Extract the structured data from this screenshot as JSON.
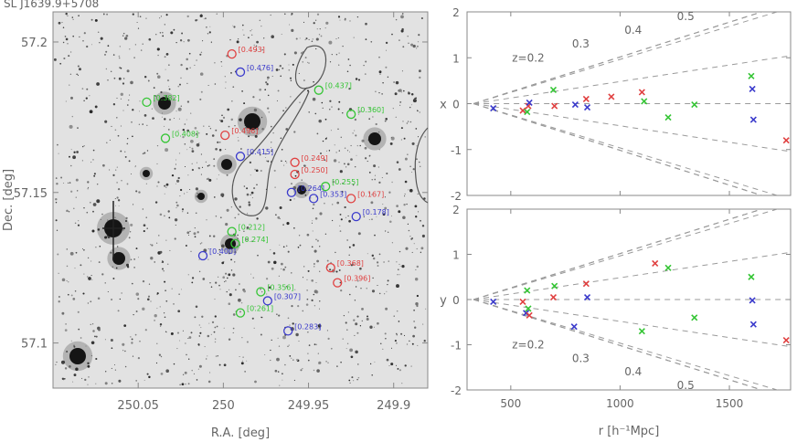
{
  "title": "SL J1639.9+5708",
  "colors": {
    "red": "#e04040",
    "green": "#35c535",
    "blue": "#3a3acc",
    "axis": "#888888",
    "dash": "#9a9a9a"
  },
  "chart_data": [
    {
      "type": "scatter",
      "name": "sky_image",
      "xlabel": "R.A. [deg]",
      "ylabel": "Dec. [deg]",
      "xlim": [
        250.1,
        249.88
      ],
      "ylim": [
        57.085,
        57.21
      ],
      "xticks": [
        {
          "value": 250.05,
          "label": "250.05"
        },
        {
          "value": 250.0,
          "label": "250"
        },
        {
          "value": 249.95,
          "label": "249.95"
        },
        {
          "value": 249.9,
          "label": "249.9"
        }
      ],
      "yticks": [
        {
          "value": 57.2,
          "label": "57.2"
        },
        {
          "value": 57.15,
          "label": "57.15"
        },
        {
          "value": 57.1,
          "label": "57.1"
        }
      ],
      "labels": [
        {
          "text": "[0.493]",
          "color": "red",
          "ra": 249.995,
          "dec": 57.196
        },
        {
          "text": "[0.476]",
          "color": "blue",
          "ra": 249.99,
          "dec": 57.19
        },
        {
          "text": "[0.382]",
          "color": "green",
          "ra": 250.045,
          "dec": 57.18
        },
        {
          "text": "[0.437]",
          "color": "green",
          "ra": 249.944,
          "dec": 57.184
        },
        {
          "text": "[0.360]",
          "color": "green",
          "ra": 249.925,
          "dec": 57.176
        },
        {
          "text": "[0.408]",
          "color": "green",
          "ra": 250.034,
          "dec": 57.168
        },
        {
          "text": "[0.496]",
          "color": "red",
          "ra": 249.999,
          "dec": 57.169
        },
        {
          "text": "[0.415]",
          "color": "blue",
          "ra": 249.99,
          "dec": 57.162
        },
        {
          "text": "[0.249]",
          "color": "red",
          "ra": 249.958,
          "dec": 57.16
        },
        {
          "text": "[0.250]",
          "color": "red",
          "ra": 249.958,
          "dec": 57.156
        },
        {
          "text": "[0.264]",
          "color": "blue",
          "ra": 249.96,
          "dec": 57.15
        },
        {
          "text": "[0.255]",
          "color": "green",
          "ra": 249.94,
          "dec": 57.152
        },
        {
          "text": "[0.353]",
          "color": "blue",
          "ra": 249.947,
          "dec": 57.148
        },
        {
          "text": "[0.167]",
          "color": "red",
          "ra": 249.925,
          "dec": 57.148
        },
        {
          "text": "[0.178]",
          "color": "blue",
          "ra": 249.922,
          "dec": 57.142
        },
        {
          "text": "[0.212]",
          "color": "green",
          "ra": 249.995,
          "dec": 57.137
        },
        {
          "text": "[0.274]",
          "color": "green",
          "ra": 249.993,
          "dec": 57.133
        },
        {
          "text": "[0.400]",
          "color": "blue",
          "ra": 250.012,
          "dec": 57.129
        },
        {
          "text": "[0.368]",
          "color": "red",
          "ra": 249.937,
          "dec": 57.125
        },
        {
          "text": "[0.396]",
          "color": "red",
          "ra": 249.933,
          "dec": 57.12
        },
        {
          "text": "[0.356]",
          "color": "green",
          "ra": 249.978,
          "dec": 57.117
        },
        {
          "text": "[0.307]",
          "color": "blue",
          "ra": 249.974,
          "dec": 57.114
        },
        {
          "text": "[0.261]",
          "color": "green",
          "ra": 249.99,
          "dec": 57.11
        },
        {
          "text": "[0.283]",
          "color": "blue",
          "ra": 249.962,
          "dec": 57.104
        }
      ]
    },
    {
      "type": "scatter",
      "name": "top_wedge",
      "xlabel": "",
      "ylabel": "x",
      "xlim": [
        300,
        1780
      ],
      "ylim": [
        -2,
        2
      ],
      "yticks": [
        -2,
        -1,
        0,
        1,
        2
      ],
      "redshift_labels": [
        "z=0.2",
        "0.3",
        "0.4",
        "0.5"
      ],
      "points": [
        {
          "x": 420,
          "y": -0.1,
          "color": "blue"
        },
        {
          "x": 555,
          "y": -0.15,
          "color": "red"
        },
        {
          "x": 575,
          "y": -0.18,
          "color": "green"
        },
        {
          "x": 580,
          "y": -0.05,
          "color": "red"
        },
        {
          "x": 585,
          "y": 0.02,
          "color": "blue"
        },
        {
          "x": 695,
          "y": 0.3,
          "color": "green"
        },
        {
          "x": 700,
          "y": -0.05,
          "color": "red"
        },
        {
          "x": 795,
          "y": -0.02,
          "color": "blue"
        },
        {
          "x": 845,
          "y": 0.1,
          "color": "red"
        },
        {
          "x": 850,
          "y": -0.08,
          "color": "blue"
        },
        {
          "x": 960,
          "y": 0.15,
          "color": "red"
        },
        {
          "x": 1100,
          "y": 0.25,
          "color": "red"
        },
        {
          "x": 1110,
          "y": 0.05,
          "color": "green"
        },
        {
          "x": 1220,
          "y": -0.3,
          "color": "green"
        },
        {
          "x": 1340,
          "y": -0.02,
          "color": "green"
        },
        {
          "x": 1600,
          "y": 0.6,
          "color": "green"
        },
        {
          "x": 1605,
          "y": 0.32,
          "color": "blue"
        },
        {
          "x": 1610,
          "y": -0.35,
          "color": "blue"
        },
        {
          "x": 1760,
          "y": -0.8,
          "color": "red"
        }
      ]
    },
    {
      "type": "scatter",
      "name": "bottom_wedge",
      "xlabel": "r [h⁻¹Mpc]",
      "ylabel": "y",
      "xlim": [
        300,
        1780
      ],
      "ylim": [
        -2,
        2
      ],
      "xticks": [
        500,
        1000,
        1500
      ],
      "yticks": [
        -2,
        -1,
        0,
        1,
        2
      ],
      "redshift_labels": [
        "z=0.2",
        "0.3",
        "0.4",
        "0.5"
      ],
      "points": [
        {
          "x": 420,
          "y": -0.05,
          "color": "blue"
        },
        {
          "x": 555,
          "y": -0.05,
          "color": "red"
        },
        {
          "x": 570,
          "y": -0.3,
          "color": "blue"
        },
        {
          "x": 575,
          "y": 0.2,
          "color": "green"
        },
        {
          "x": 580,
          "y": -0.2,
          "color": "green"
        },
        {
          "x": 585,
          "y": -0.35,
          "color": "red"
        },
        {
          "x": 695,
          "y": 0.05,
          "color": "red"
        },
        {
          "x": 700,
          "y": 0.3,
          "color": "green"
        },
        {
          "x": 790,
          "y": -0.6,
          "color": "blue"
        },
        {
          "x": 845,
          "y": 0.35,
          "color": "red"
        },
        {
          "x": 850,
          "y": 0.05,
          "color": "blue"
        },
        {
          "x": 1100,
          "y": -0.7,
          "color": "green"
        },
        {
          "x": 1160,
          "y": 0.8,
          "color": "red"
        },
        {
          "x": 1220,
          "y": 0.7,
          "color": "green"
        },
        {
          "x": 1340,
          "y": -0.4,
          "color": "green"
        },
        {
          "x": 1600,
          "y": 0.5,
          "color": "green"
        },
        {
          "x": 1605,
          "y": -0.02,
          "color": "blue"
        },
        {
          "x": 1610,
          "y": -0.55,
          "color": "blue"
        },
        {
          "x": 1760,
          "y": -0.9,
          "color": "red"
        }
      ]
    }
  ]
}
